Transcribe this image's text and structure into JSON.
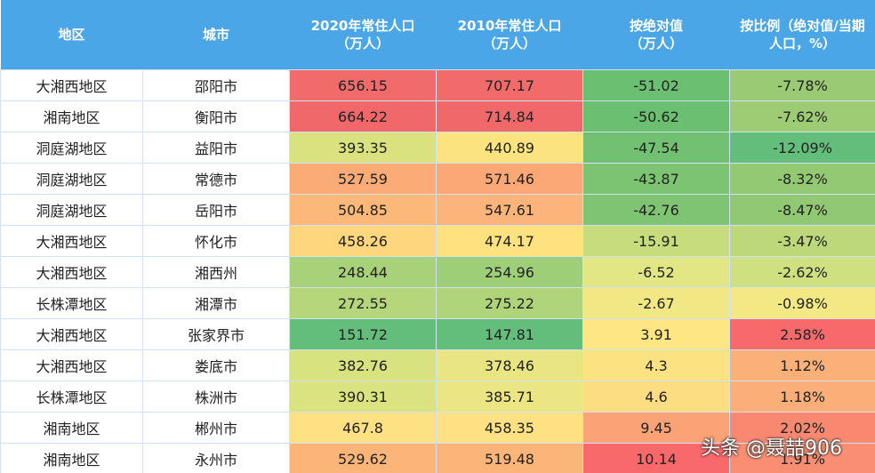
{
  "header": [
    [
      "地区"
    ],
    [
      "城市"
    ],
    [
      "2020年常住人口",
      "（万人）"
    ],
    [
      "2010年常住人口",
      "（万人）"
    ],
    [
      "按绝对值",
      "（万人）"
    ],
    [
      "按比例（绝对值/当期",
      "人口，%）"
    ]
  ],
  "rows": [
    [
      "大湘西地区",
      "邵阳市",
      "656.15",
      "707.17",
      "-51.02",
      "-7.78%"
    ],
    [
      "湘南地区",
      "衡阳市",
      "664.22",
      "714.84",
      "-50.62",
      "-7.62%"
    ],
    [
      "洞庭湖地区",
      "益阳市",
      "393.35",
      "440.89",
      "-47.54",
      "-12.09%"
    ],
    [
      "洞庭湖地区",
      "常德市",
      "527.59",
      "571.46",
      "-43.87",
      "-8.32%"
    ],
    [
      "洞庭湖地区",
      "岳阳市",
      "504.85",
      "547.61",
      "-42.76",
      "-8.47%"
    ],
    [
      "大湘西地区",
      "怀化市",
      "458.26",
      "474.17",
      "-15.91",
      "-3.47%"
    ],
    [
      "大湘西地区",
      "湘西州",
      "248.44",
      "254.96",
      "-6.52",
      "-2.62%"
    ],
    [
      "长株潭地区",
      "湘潭市",
      "272.55",
      "275.22",
      "-2.67",
      "-0.98%"
    ],
    [
      "大湘西地区",
      "张家界市",
      "151.72",
      "147.81",
      "3.91",
      "2.58%"
    ],
    [
      "大湘西地区",
      "娄底市",
      "382.76",
      "378.46",
      "4.3",
      "1.12%"
    ],
    [
      "长株潭地区",
      "株洲市",
      "390.31",
      "385.71",
      "4.6",
      "1.18%"
    ],
    [
      "湘南地区",
      "郴州市",
      "467.8",
      "458.35",
      "9.45",
      "2.02%"
    ],
    [
      "湘南地区",
      "永州市",
      "529.62",
      "519.48",
      "10.14",
      "1.91%"
    ]
  ],
  "cell_colors": [
    [
      "#f26b6b",
      "#f26b6b",
      "#6abf70",
      "#9acb74"
    ],
    [
      "#f0686a",
      "#f0686a",
      "#6bbf70",
      "#9dcc74"
    ],
    [
      "#d9e27e",
      "#fbe47f",
      "#72c172",
      "#63be7b"
    ],
    [
      "#fbab76",
      "#fba776",
      "#7cc472",
      "#94c974"
    ],
    [
      "#fcb879",
      "#fcb47a",
      "#7fc472",
      "#91c874"
    ],
    [
      "#fdd67e",
      "#fde27f",
      "#c7dc7c",
      "#bcd87a"
    ],
    [
      "#a8d27a",
      "#9ecf78",
      "#e3e684",
      "#cee080"
    ],
    [
      "#b6d67b",
      "#b0d47a",
      "#f1e885",
      "#f2e884"
    ],
    [
      "#63be7b",
      "#63be7b",
      "#fde683",
      "#f8696b"
    ],
    [
      "#d8e27f",
      "#e9e583",
      "#fde282",
      "#fbb077"
    ],
    [
      "#dbe380",
      "#ebe583",
      "#fddd81",
      "#fbae77"
    ],
    [
      "#fee182",
      "#fee182",
      "#fba276",
      "#f98870"
    ],
    [
      "#fcb579",
      "#fcb579",
      "#f8696b",
      "#fa8e72"
    ]
  ],
  "watermark": "头条 @聂喆906"
}
